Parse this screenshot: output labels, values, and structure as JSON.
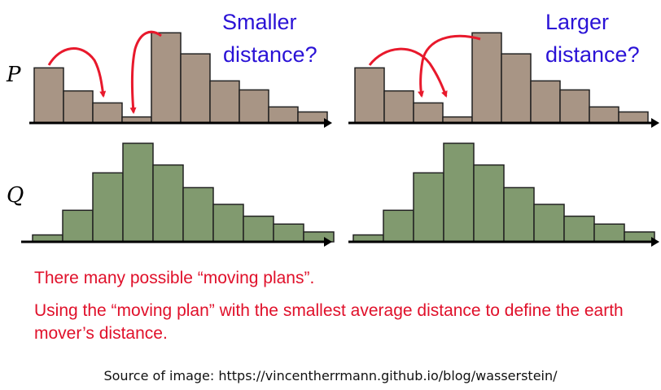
{
  "labels": {
    "p": "P",
    "q": "Q"
  },
  "annotations": {
    "left_line1": "Smaller",
    "left_line2": "distance?",
    "right_line1": "Larger",
    "right_line2": "distance?"
  },
  "captions": {
    "line1": "There many possible “moving plans”.",
    "line2": "Using the “moving plan” with the smallest average distance to define the earth mover’s distance."
  },
  "source": "Source of image: https://vincentherrmann.github.io/blog/wasserstein/",
  "colors": {
    "p_fill": "#a89585",
    "q_fill": "#819a6f",
    "bar_stroke": "#222222",
    "axis": "#000000",
    "arrow": "#e8192c",
    "annotation_text": "#2a12d6",
    "caption_text": "#e0102a"
  },
  "chart_data": [
    {
      "type": "bar",
      "name_id": "left-p",
      "values": [
        0.55,
        0.32,
        0.2,
        0.06,
        0.9,
        0.69,
        0.42,
        0.33,
        0.16,
        0.11
      ],
      "ylim": [
        0,
        1
      ]
    },
    {
      "type": "bar",
      "name_id": "right-p",
      "values": [
        0.55,
        0.32,
        0.2,
        0.06,
        0.9,
        0.69,
        0.42,
        0.33,
        0.16,
        0.11
      ],
      "ylim": [
        0,
        1
      ]
    },
    {
      "type": "bar",
      "name_id": "left-q",
      "values": [
        0.07,
        0.32,
        0.7,
        1.0,
        0.78,
        0.55,
        0.38,
        0.26,
        0.18,
        0.1
      ],
      "ylim": [
        0,
        1
      ]
    },
    {
      "type": "bar",
      "name_id": "right-q",
      "values": [
        0.07,
        0.32,
        0.7,
        1.0,
        0.78,
        0.55,
        0.38,
        0.26,
        0.18,
        0.1
      ],
      "ylim": [
        0,
        1
      ]
    }
  ]
}
